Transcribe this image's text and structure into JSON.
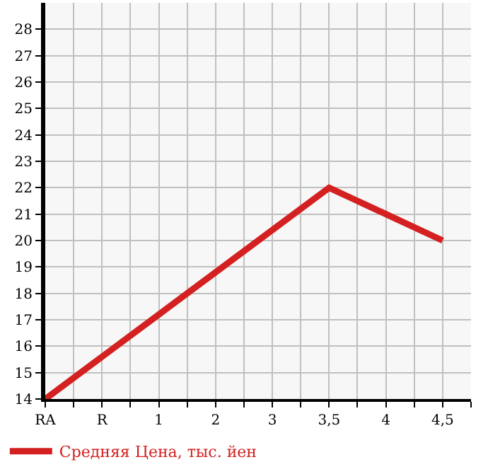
{
  "chart_data": {
    "type": "line",
    "categories": [
      "RA",
      "R",
      "1",
      "2",
      "3",
      "3,5",
      "4",
      "4,5"
    ],
    "series": [
      {
        "name": "Средняя Цена, тыс. йен",
        "color": "#d42020",
        "values": [
          14,
          15.6,
          17.2,
          18.8,
          20.4,
          22,
          21,
          20
        ]
      }
    ],
    "ylim": [
      14,
      29
    ],
    "yticks": [
      14,
      15,
      16,
      17,
      18,
      19,
      20,
      21,
      22,
      23,
      24,
      25,
      26,
      27,
      28
    ],
    "grid": true,
    "legend": "bottom",
    "marker": "none",
    "line_style": "solid"
  }
}
